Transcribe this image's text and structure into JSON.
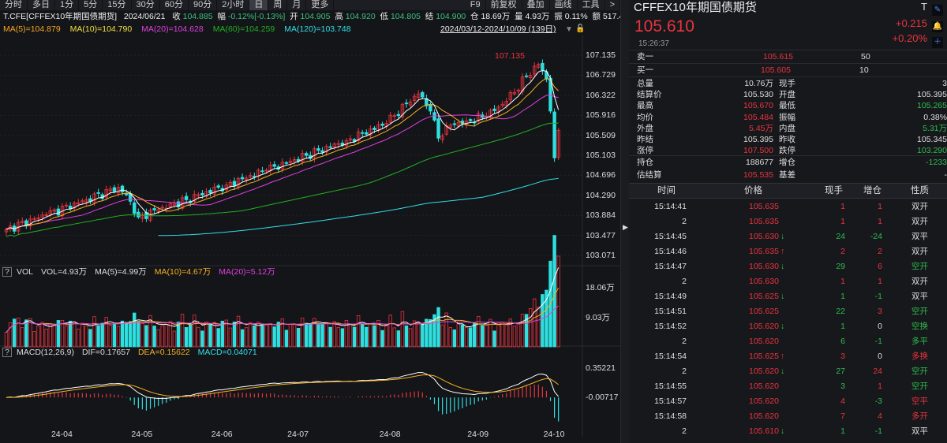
{
  "toolbar": {
    "periods": [
      "分时",
      "多日",
      "1分",
      "5分",
      "15分",
      "30分",
      "60分",
      "90分",
      "2小时",
      "日",
      "周",
      "月",
      "更多"
    ],
    "active": "日",
    "right": [
      "F9",
      "前复权",
      "叠加",
      "画线",
      "工具",
      ">"
    ]
  },
  "info": {
    "symbol": "T.CFE[CFFEX10年期国债期货]",
    "date": "2024/06/21",
    "close_label": "收",
    "close": "104.885",
    "chg_label": "幅",
    "chg": "-0.12%[-0.13%]",
    "open_label": "开",
    "open": "104.905",
    "high_label": "高",
    "high": "104.920",
    "low_label": "低",
    "low": "104.805",
    "settle_label": "结",
    "settle": "104.900",
    "oi_label": "仓",
    "oi": "18.69万",
    "vol_label": "量",
    "vol": "4.93万",
    "amp_label": "振",
    "amp": "0.11%",
    "amt_label": "额",
    "amt": "517.42亿"
  },
  "ma_legend": [
    {
      "text": "MA(5)=104.879",
      "color": "#f5a623"
    },
    {
      "text": "MA(10)=104.790",
      "color": "#f0e040"
    },
    {
      "text": "MA(20)=104.628",
      "color": "#e040e0"
    },
    {
      "text": "MA(60)=104.259",
      "color": "#22b022"
    },
    {
      "text": "MA(120)=103.748",
      "color": "#30e0e8"
    }
  ],
  "range": "2024/03/12-2024/10/09 (139日)",
  "price_axis": [
    "107.135",
    "106.729",
    "106.322",
    "105.916",
    "105.509",
    "105.103",
    "104.696",
    "104.290",
    "103.884",
    "103.477",
    "103.071"
  ],
  "peak_label": "107.135",
  "vol_header": {
    "name": "VOL",
    "vol": "VOL=4.93万",
    "ma5": "MA(5)=4.99万",
    "ma10": "MA(10)=4.67万",
    "ma20": "MA(20)=5.12万"
  },
  "vol_axis": [
    "18.06万",
    "9.03万"
  ],
  "macd_header": {
    "name": "MACD(12,26,9)",
    "dif": "DIF=0.17657",
    "dea": "DEA=0.15622",
    "macd": "MACD=0.04071"
  },
  "macd_axis": [
    "0.35221",
    "-0.00717"
  ],
  "date_axis": [
    {
      "label": "24-04",
      "day": 14
    },
    {
      "label": "24-05",
      "day": 34
    },
    {
      "label": "24-06",
      "day": 54
    },
    {
      "label": "24-07",
      "day": 73
    },
    {
      "label": "24-08",
      "day": 96
    },
    {
      "label": "24-09",
      "day": 118
    },
    {
      "label": "24-10",
      "day": 137
    }
  ],
  "colors": {
    "up": "#e8343e",
    "down": "#2ee0e0",
    "ma5": "#ffffff",
    "ma10": "#f5b020",
    "ma20": "#e040e0",
    "ma60": "#22b022",
    "ma120": "#30e0e8"
  },
  "chart_data": {
    "type": "candlestick",
    "days": 139,
    "ylim": [
      103.071,
      107.135
    ],
    "close_anchors": [
      [
        0,
        103.6
      ],
      [
        10,
        103.9
      ],
      [
        20,
        104.2
      ],
      [
        28,
        104.45
      ],
      [
        30,
        104.3
      ],
      [
        33,
        103.85
      ],
      [
        38,
        104.0
      ],
      [
        45,
        104.2
      ],
      [
        55,
        104.5
      ],
      [
        65,
        104.8
      ],
      [
        75,
        105.1
      ],
      [
        85,
        105.4
      ],
      [
        95,
        105.75
      ],
      [
        100,
        106.15
      ],
      [
        103,
        106.35
      ],
      [
        106,
        106.0
      ],
      [
        108,
        105.45
      ],
      [
        110,
        105.7
      ],
      [
        115,
        105.8
      ],
      [
        120,
        105.9
      ],
      [
        125,
        106.2
      ],
      [
        130,
        106.7
      ],
      [
        133,
        106.95
      ],
      [
        135,
        106.65
      ],
      [
        136,
        106.0
      ],
      [
        137,
        105.05
      ],
      [
        138,
        105.61
      ]
    ]
  },
  "quote": {
    "title": "CFFEX10年期国债期货",
    "last": "105.610",
    "time": "15:26:37",
    "tag": "T",
    "change": "+0.215",
    "change_pct": "+0.20%",
    "ask": {
      "label": "卖一",
      "price": "105.615",
      "qty": "50"
    },
    "bid": {
      "label": "买一",
      "price": "105.605",
      "qty": "10"
    },
    "stats": [
      {
        "l1": "总量",
        "v1": "10.76万",
        "c1": "wh",
        "l2": "现手",
        "v2": "3",
        "c2": "wh"
      },
      {
        "l1": "结算价",
        "v1": "105.530",
        "c1": "wh",
        "l2": "开盘",
        "v2": "105.395",
        "c2": "wh"
      },
      {
        "l1": "最高",
        "v1": "105.670",
        "c1": "red",
        "l2": "最低",
        "v2": "105.265",
        "c2": "green"
      },
      {
        "l1": "均价",
        "v1": "105.484",
        "c1": "red",
        "l2": "振幅",
        "v2": "0.38%",
        "c2": "wh"
      },
      {
        "l1": "外盘",
        "v1": "5.45万",
        "c1": "red",
        "l2": "内盘",
        "v2": "5.31万",
        "c2": "green"
      },
      {
        "l1": "昨结",
        "v1": "105.395",
        "c1": "wh",
        "l2": "昨收",
        "v2": "105.345",
        "c2": "wh"
      },
      {
        "l1": "涨停",
        "v1": "107.500",
        "c1": "red",
        "l2": "跌停",
        "v2": "103.290",
        "c2": "green"
      }
    ],
    "stats2": [
      {
        "l1": "持仓",
        "v1": "188677",
        "c1": "wh",
        "l2": "增仓",
        "v2": "-1233",
        "c2": "green"
      },
      {
        "l1": "估结算",
        "v1": "105.535",
        "c1": "red",
        "l2": "基差",
        "v2": "-",
        "c2": "wh"
      }
    ]
  },
  "trades": {
    "headers": [
      "时间",
      "价格",
      "现手",
      "增仓",
      "性质"
    ],
    "rows": [
      {
        "t": "15:14:41",
        "p": "105.635",
        "a": "",
        "q": "1",
        "qc": "red",
        "o": "1",
        "oc": "red",
        "n": "双开",
        "nc": "wh"
      },
      {
        "t": "2",
        "p": "105.635",
        "a": "",
        "q": "1",
        "qc": "red",
        "o": "1",
        "oc": "red",
        "n": "双开",
        "nc": "wh"
      },
      {
        "t": "15:14:45",
        "p": "105.630",
        "a": "↓",
        "q": "24",
        "qc": "green",
        "o": "-24",
        "oc": "green",
        "n": "双平",
        "nc": "wh"
      },
      {
        "t": "15:14:46",
        "p": "105.635",
        "a": "↑",
        "q": "2",
        "qc": "red",
        "o": "2",
        "oc": "red",
        "n": "双开",
        "nc": "wh"
      },
      {
        "t": "15:14:47",
        "p": "105.630",
        "a": "↓",
        "q": "29",
        "qc": "green",
        "o": "6",
        "oc": "red",
        "n": "空开",
        "nc": "green"
      },
      {
        "t": "2",
        "p": "105.630",
        "a": "",
        "q": "1",
        "qc": "red",
        "o": "1",
        "oc": "red",
        "n": "双开",
        "nc": "wh"
      },
      {
        "t": "15:14:49",
        "p": "105.625",
        "a": "↓",
        "q": "1",
        "qc": "green",
        "o": "-1",
        "oc": "green",
        "n": "双平",
        "nc": "wh"
      },
      {
        "t": "15:14:51",
        "p": "105.625",
        "a": "",
        "q": "22",
        "qc": "green",
        "o": "3",
        "oc": "red",
        "n": "空开",
        "nc": "green"
      },
      {
        "t": "15:14:52",
        "p": "105.620",
        "a": "↓",
        "q": "1",
        "qc": "green",
        "o": "0",
        "oc": "wh",
        "n": "空换",
        "nc": "green"
      },
      {
        "t": "2",
        "p": "105.620",
        "a": "",
        "q": "6",
        "qc": "green",
        "o": "-1",
        "oc": "green",
        "n": "多平",
        "nc": "green"
      },
      {
        "t": "15:14:54",
        "p": "105.625",
        "a": "↑",
        "q": "3",
        "qc": "red",
        "o": "0",
        "oc": "wh",
        "n": "多换",
        "nc": "red"
      },
      {
        "t": "2",
        "p": "105.620",
        "a": "↓",
        "q": "27",
        "qc": "green",
        "o": "24",
        "oc": "red",
        "n": "空开",
        "nc": "green"
      },
      {
        "t": "15:14:55",
        "p": "105.620",
        "a": "",
        "q": "3",
        "qc": "green",
        "o": "1",
        "oc": "red",
        "n": "空开",
        "nc": "green"
      },
      {
        "t": "15:14:57",
        "p": "105.620",
        "a": "",
        "q": "4",
        "qc": "red",
        "o": "-3",
        "oc": "green",
        "n": "空平",
        "nc": "red"
      },
      {
        "t": "15:14:58",
        "p": "105.620",
        "a": "",
        "q": "7",
        "qc": "red",
        "o": "4",
        "oc": "red",
        "n": "多开",
        "nc": "red"
      },
      {
        "t": "2",
        "p": "105.610",
        "a": "↓",
        "q": "1",
        "qc": "green",
        "o": "-1",
        "oc": "green",
        "n": "双平",
        "nc": "wh"
      }
    ]
  }
}
